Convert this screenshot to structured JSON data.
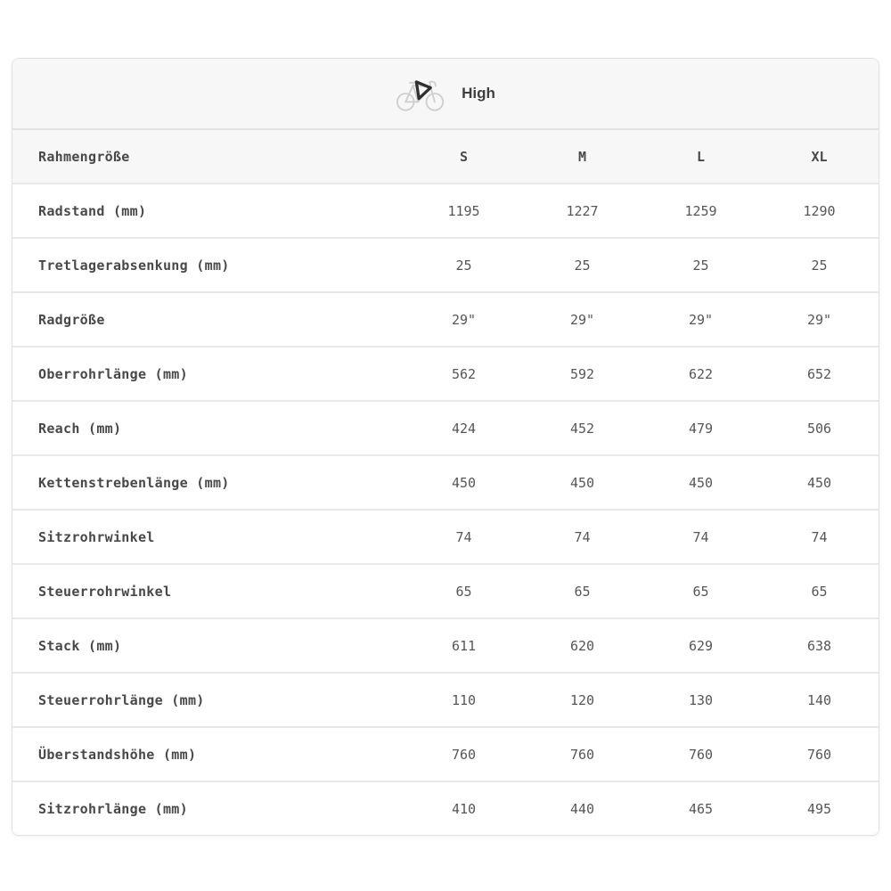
{
  "header": {
    "icon": "bicycle-icon",
    "title": "High"
  },
  "table": {
    "size_header": {
      "label": "Rahmengröße",
      "columns": [
        "S",
        "M",
        "L",
        "XL"
      ]
    },
    "rows": [
      {
        "label": "Radstand (mm)",
        "values": [
          "1195",
          "1227",
          "1259",
          "1290"
        ]
      },
      {
        "label": "Tretlagerabsenkung (mm)",
        "values": [
          "25",
          "25",
          "25",
          "25"
        ]
      },
      {
        "label": "Radgröße",
        "values": [
          "29\"",
          "29\"",
          "29\"",
          "29\""
        ]
      },
      {
        "label": "Oberrohrlänge (mm)",
        "values": [
          "562",
          "592",
          "622",
          "652"
        ]
      },
      {
        "label": "Reach (mm)",
        "values": [
          "424",
          "452",
          "479",
          "506"
        ]
      },
      {
        "label": "Kettenstrebenlänge (mm)",
        "values": [
          "450",
          "450",
          "450",
          "450"
        ]
      },
      {
        "label": "Sitzrohrwinkel",
        "values": [
          "74",
          "74",
          "74",
          "74"
        ]
      },
      {
        "label": "Steuerrohrwinkel",
        "values": [
          "65",
          "65",
          "65",
          "65"
        ]
      },
      {
        "label": "Stack (mm)",
        "values": [
          "611",
          "620",
          "629",
          "638"
        ]
      },
      {
        "label": "Steuerrohrlänge (mm)",
        "values": [
          "110",
          "120",
          "130",
          "140"
        ]
      },
      {
        "label": "Überstandshöhe (mm)",
        "values": [
          "760",
          "760",
          "760",
          "760"
        ]
      },
      {
        "label": "Sitzrohrlänge (mm)",
        "values": [
          "410",
          "440",
          "465",
          "495"
        ]
      }
    ]
  },
  "colors": {
    "header_bg": "#f7f7f7",
    "card_border": "#e2e2e2",
    "row_divider": "#e9e9e9",
    "label_text": "#484848",
    "value_text": "#565656",
    "icon_gray": "#cfcfcf",
    "icon_dark": "#2f2f2f"
  }
}
